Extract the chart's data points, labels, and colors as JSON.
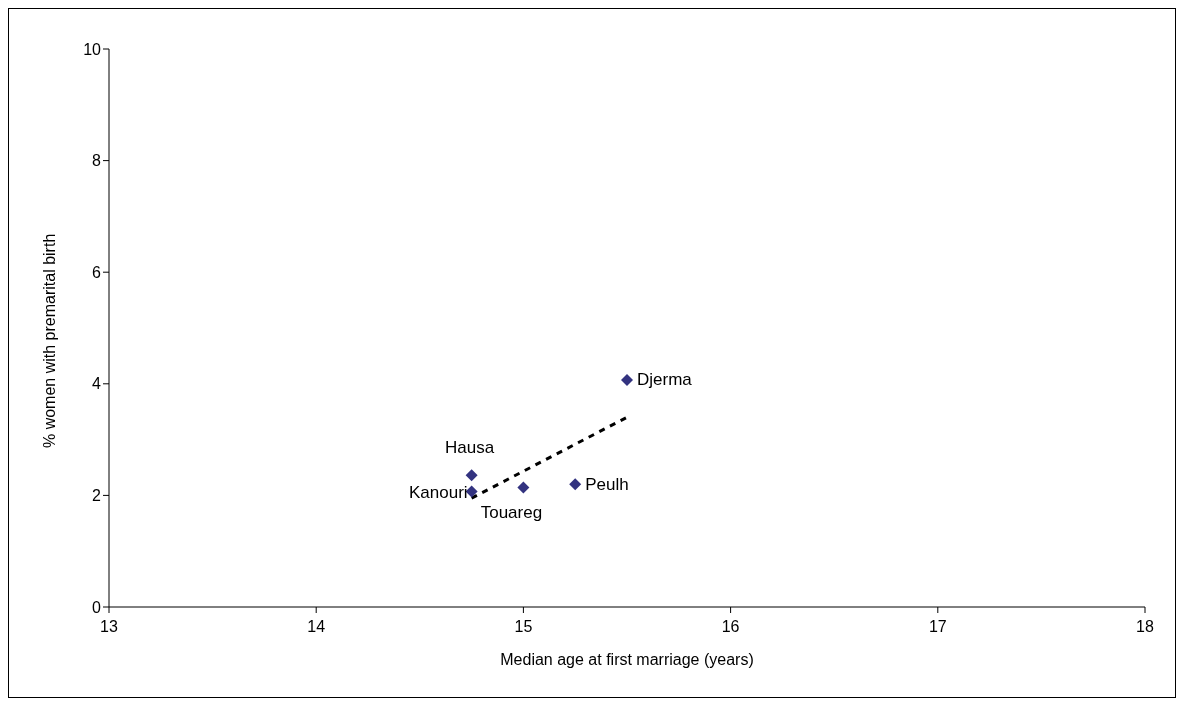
{
  "chart_data": {
    "type": "scatter",
    "xlabel": "Median age at first marriage (years)",
    "ylabel": "% women with premarital birth",
    "xlim": [
      13,
      18
    ],
    "xticks": [
      13,
      14,
      15,
      16,
      17,
      18
    ],
    "ylim": [
      0,
      10
    ],
    "yticks": [
      0,
      2,
      4,
      6,
      8,
      10
    ],
    "grid": false,
    "legend": false,
    "marker": "diamond",
    "series": [
      {
        "color": "#333380",
        "x": [
          15.5,
          14.75,
          14.75,
          15.0,
          15.25
        ],
        "values": [
          4.07,
          2.36,
          2.07,
          2.14,
          2.2
        ]
      },
      {
        "type": "line",
        "color": "#000000",
        "line_style": "dashed",
        "marker": "none",
        "x": [
          14.75,
          15.5
        ],
        "values": [
          1.95,
          3.4
        ]
      }
    ],
    "annotations": [
      {
        "text": "Djerma",
        "x": 15.5,
        "y": 4.07
      },
      {
        "text": "Hausa",
        "x": 14.75,
        "y": 2.36
      },
      {
        "text": "Kanouri",
        "x": 14.75,
        "y": 2.07
      },
      {
        "text": "Touareg",
        "x": 15.0,
        "y": 2.14
      },
      {
        "text": "Peulh",
        "x": 15.25,
        "y": 2.2
      }
    ]
  }
}
